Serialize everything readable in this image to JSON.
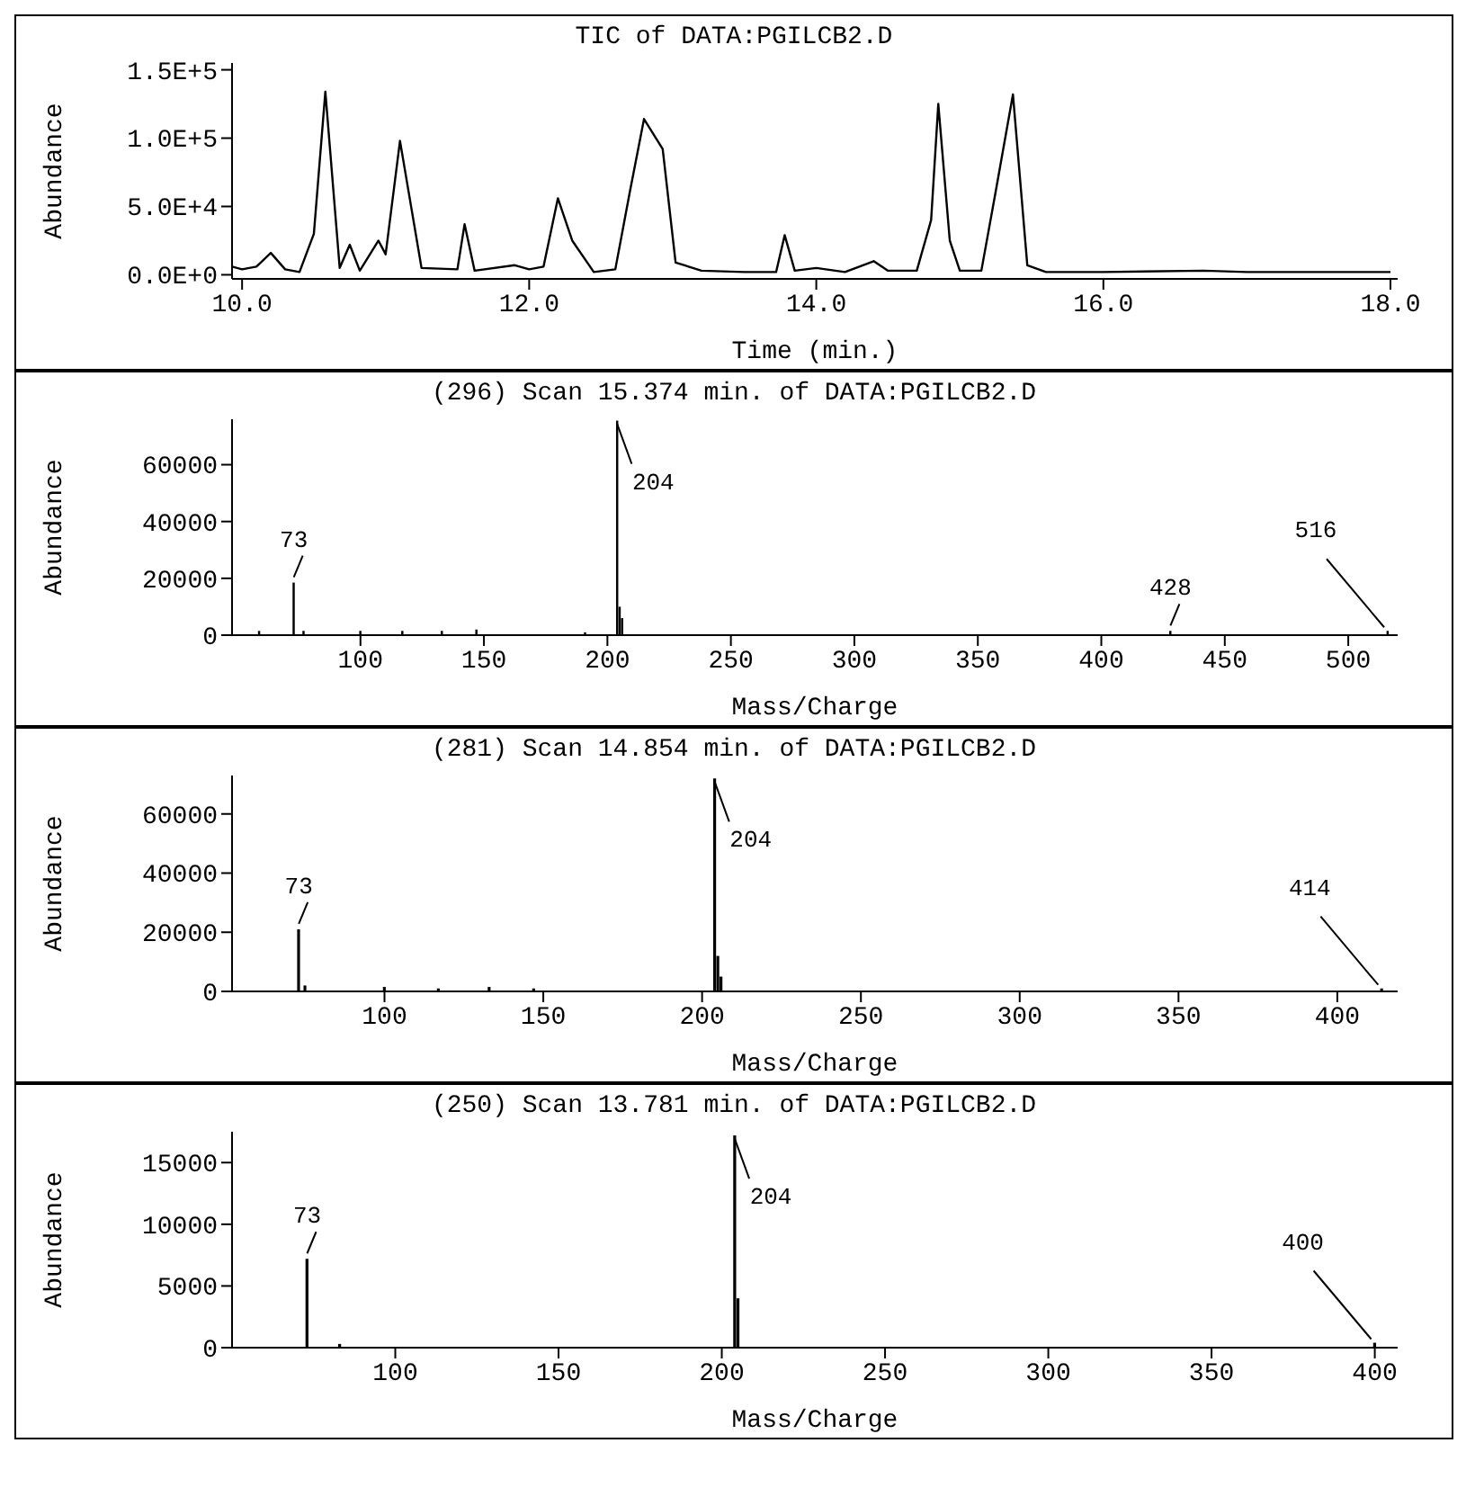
{
  "chart_data": [
    {
      "type": "line",
      "title": "TIC of DATA:PGILCB2.D",
      "xlabel": "Time (min.)",
      "ylabel": "Abundance",
      "color": "#000000",
      "x": [
        9.93,
        10.0,
        10.1,
        10.2,
        10.3,
        10.4,
        10.5,
        10.58,
        10.68,
        10.75,
        10.82,
        10.95,
        11.0,
        11.1,
        11.25,
        11.5,
        11.55,
        11.62,
        11.9,
        12.0,
        12.1,
        12.2,
        12.3,
        12.45,
        12.6,
        12.7,
        12.8,
        12.93,
        13.02,
        13.2,
        13.5,
        13.72,
        13.78,
        13.85,
        14.0,
        14.2,
        14.4,
        14.5,
        14.7,
        14.8,
        14.85,
        14.93,
        15.0,
        15.15,
        15.25,
        15.37,
        15.47,
        15.6,
        16.0,
        16.7,
        17.0,
        18.0
      ],
      "values": [
        6000,
        4000,
        6000,
        16000,
        4000,
        2000,
        30000,
        134000,
        5000,
        22000,
        3000,
        25000,
        15000,
        98000,
        5000,
        4000,
        37000,
        3000,
        7000,
        4000,
        6000,
        56000,
        25000,
        2000,
        4000,
        60000,
        114000,
        92000,
        9000,
        3000,
        2000,
        2000,
        29000,
        3000,
        5000,
        2000,
        10000,
        3000,
        3000,
        40000,
        125000,
        25000,
        3000,
        3000,
        61000,
        132000,
        7000,
        2000,
        2000,
        3000,
        2000,
        2000
      ],
      "xlim": [
        9.93,
        18.05
      ],
      "xticks": [
        {
          "value": 10,
          "label": "10.0"
        },
        {
          "value": 12,
          "label": "12.0"
        },
        {
          "value": 14,
          "label": "14.0"
        },
        {
          "value": 16,
          "label": "16.0"
        },
        {
          "value": 18,
          "label": "18.0"
        }
      ],
      "ylim": [
        -3000,
        155000
      ],
      "yticks": [
        {
          "value": 0,
          "label": "0.0E+0"
        },
        {
          "value": 50000,
          "label": "5.0E+4"
        },
        {
          "value": 100000,
          "label": "1.0E+5"
        },
        {
          "value": 150000,
          "label": "1.5E+5"
        }
      ]
    },
    {
      "type": "bar",
      "title": "(296) Scan 15.374 min. of DATA:PGILCB2.D",
      "xlabel": "Mass/Charge",
      "ylabel": "Abundance",
      "color": "#000000",
      "x": [
        59,
        73,
        77,
        100,
        117,
        133,
        147,
        191,
        204,
        205,
        206,
        428,
        516
      ],
      "values": [
        1500,
        18500,
        1500,
        1500,
        1500,
        1500,
        2000,
        1000,
        75500,
        10000,
        6000,
        1500,
        1500
      ],
      "xlim": [
        48,
        520
      ],
      "xticks": [
        100,
        150,
        200,
        250,
        300,
        350,
        400,
        450,
        500
      ],
      "ylim": [
        0,
        76000
      ],
      "yticks": [
        0,
        20000,
        40000,
        60000
      ],
      "annotations": [
        {
          "text": "73",
          "x": 73,
          "y": 18500
        },
        {
          "text": "204",
          "x": 204,
          "y": 75500
        },
        {
          "text": "428",
          "x": 428,
          "y": 1500
        },
        {
          "text": "516",
          "x": 516,
          "y": 1500
        }
      ]
    },
    {
      "type": "bar",
      "title": "(281) Scan 14.854 min. of DATA:PGILCB2.D",
      "xlabel": "Mass/Charge",
      "ylabel": "Abundance",
      "color": "#000000",
      "x": [
        73,
        75,
        100,
        117,
        133,
        147,
        204,
        205,
        206,
        414
      ],
      "values": [
        21000,
        2000,
        1500,
        1000,
        1500,
        1000,
        72000,
        12000,
        5000,
        1000
      ],
      "xlim": [
        52,
        419
      ],
      "xticks": [
        100,
        150,
        200,
        250,
        300,
        350,
        400
      ],
      "ylim": [
        0,
        73000
      ],
      "yticks": [
        0,
        20000,
        40000,
        60000
      ],
      "annotations": [
        {
          "text": "73",
          "x": 73,
          "y": 21000
        },
        {
          "text": "204",
          "x": 204,
          "y": 72000
        },
        {
          "text": "414",
          "x": 414,
          "y": 1000
        }
      ]
    },
    {
      "type": "bar",
      "title": "(250) Scan 13.781 min. of DATA:PGILCB2.D",
      "xlabel": "Mass/Charge",
      "ylabel": "Abundance",
      "color": "#000000",
      "x": [
        73,
        83,
        204,
        205,
        400
      ],
      "values": [
        7200,
        300,
        17200,
        4000,
        400
      ],
      "xlim": [
        50,
        407
      ],
      "xticks": [
        100,
        150,
        200,
        250,
        300,
        350,
        400
      ],
      "ylim": [
        0,
        17500
      ],
      "yticks": [
        0,
        5000,
        10000,
        15000
      ],
      "annotations": [
        {
          "text": "73",
          "x": 73,
          "y": 7200
        },
        {
          "text": "204",
          "x": 204,
          "y": 17200
        },
        {
          "text": "400",
          "x": 400,
          "y": 400
        }
      ]
    }
  ]
}
